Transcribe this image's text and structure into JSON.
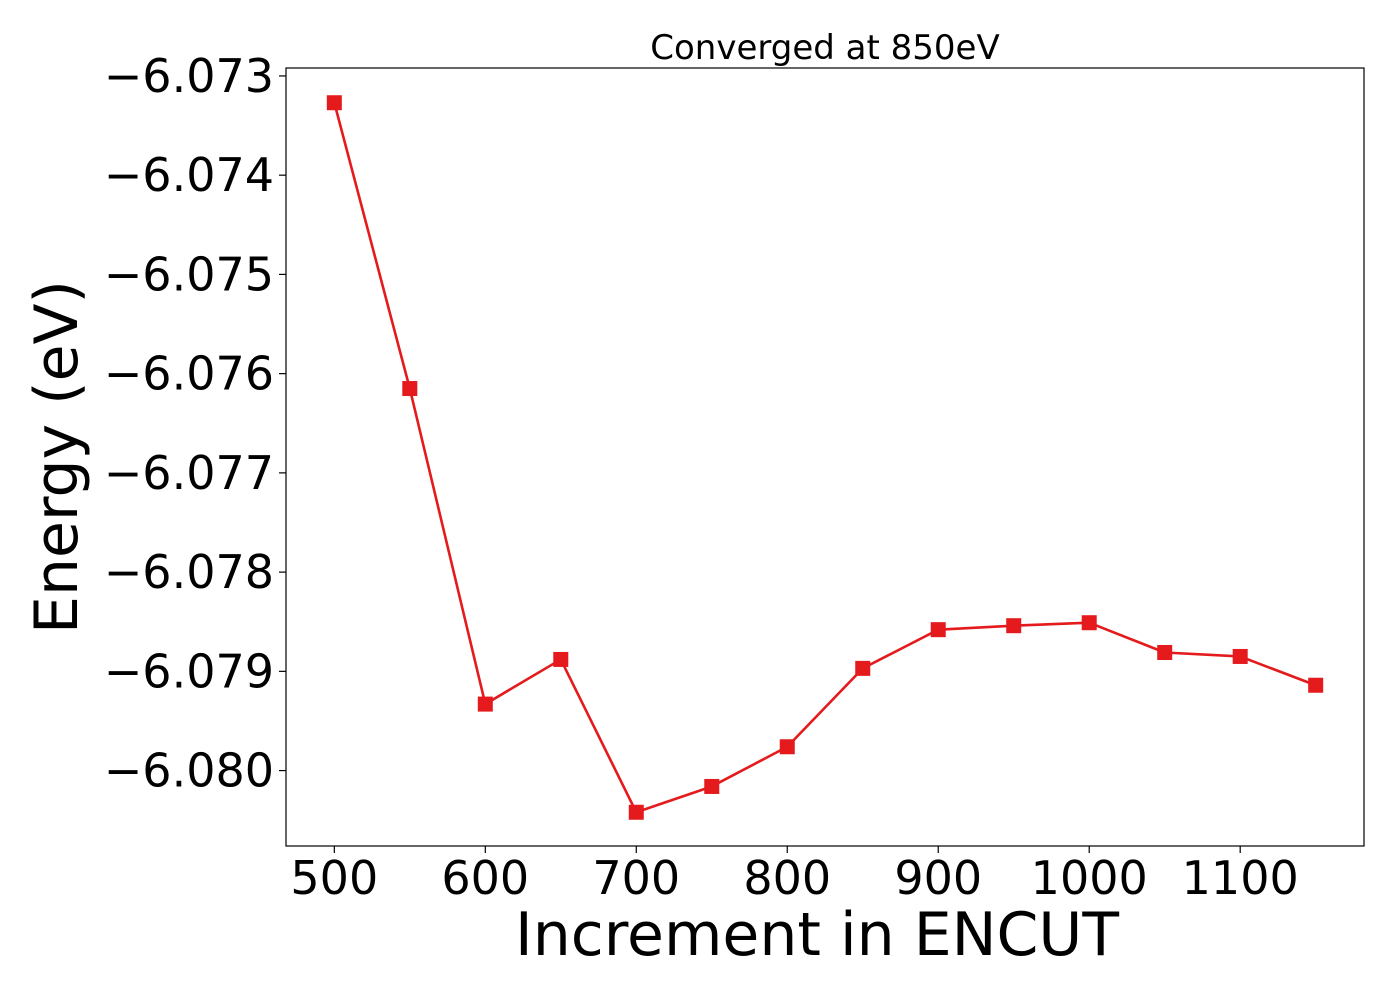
{
  "chart_data": {
    "type": "line",
    "title": "Converged at 850eV",
    "xlabel": "Increment in ENCUT",
    "ylabel": "Energy (eV)",
    "x": [
      500,
      550,
      600,
      650,
      700,
      750,
      800,
      850,
      900,
      950,
      1000,
      1050,
      1100,
      1150
    ],
    "series": [
      {
        "values": [
          -6.07327,
          -6.07615,
          -6.07933,
          -6.07888,
          -6.08042,
          -6.08016,
          -6.07976,
          -6.07897,
          -6.07858,
          -6.07854,
          -6.07851,
          -6.07881,
          -6.07885,
          -6.07914
        ],
        "color": "#e41a1c",
        "marker": "square"
      }
    ],
    "xticks": [
      500,
      600,
      700,
      800,
      900,
      1000,
      1100
    ],
    "xtick_labels": [
      "500",
      "600",
      "700",
      "800",
      "900",
      "1000",
      "1100"
    ],
    "yticks": [
      -6.073,
      -6.074,
      -6.075,
      -6.076,
      -6.077,
      -6.078,
      -6.079,
      -6.08
    ],
    "ytick_labels": [
      "−6.073",
      "−6.074",
      "−6.075",
      "−6.076",
      "−6.077",
      "−6.078",
      "−6.079",
      "−6.080"
    ],
    "xlim": [
      468,
      1182
    ],
    "ylim": [
      -6.08076,
      -6.07292
    ],
    "grid": false,
    "legend": "none"
  }
}
